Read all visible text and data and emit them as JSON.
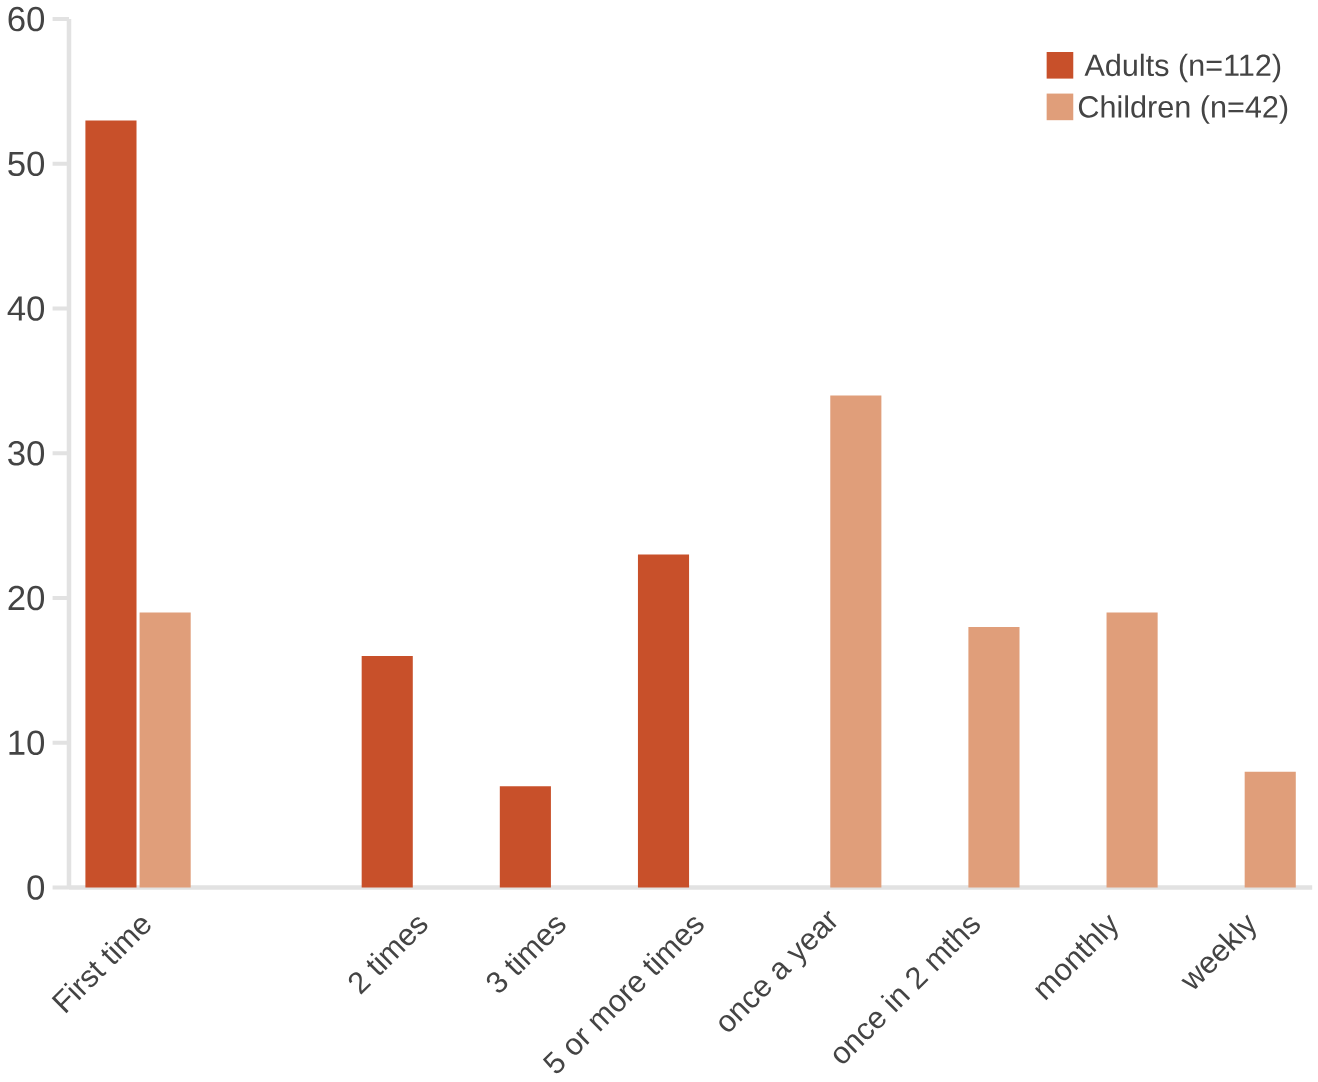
{
  "chart_data": {
    "type": "bar",
    "categories": [
      "First time",
      null,
      "2 times",
      "3 times",
      "5 or more times",
      "once a year",
      "once in 2 mths",
      "monthly",
      "weekly"
    ],
    "series": [
      {
        "name": "Adults (n=112)",
        "color": "#c8502a",
        "values": [
          53,
          null,
          16,
          7,
          23,
          null,
          null,
          null,
          null
        ]
      },
      {
        "name": "Children (n=42)",
        "color": "#e09e7a",
        "values": [
          19,
          null,
          null,
          null,
          null,
          34,
          18,
          19,
          8
        ]
      }
    ],
    "ylim": [
      0,
      60
    ],
    "yticks": [
      0,
      10,
      20,
      30,
      40,
      50,
      60
    ],
    "grid": false,
    "legend": "top right"
  }
}
